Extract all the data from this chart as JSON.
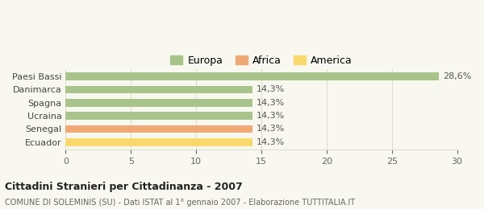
{
  "categories": [
    "Ecuador",
    "Senegal",
    "Ucraina",
    "Spagna",
    "Danimarca",
    "Paesi Bassi"
  ],
  "values": [
    14.3,
    14.3,
    14.3,
    14.3,
    14.3,
    28.6
  ],
  "bar_colors": [
    "#f9d96e",
    "#f0a875",
    "#a8c48a",
    "#a8c48a",
    "#a8c48a",
    "#a8c48a"
  ],
  "labels": [
    "14,3%",
    "14,3%",
    "14,3%",
    "14,3%",
    "14,3%",
    "28,6%"
  ],
  "legend": [
    {
      "label": "Europa",
      "color": "#a8c48a"
    },
    {
      "label": "Africa",
      "color": "#f0a875"
    },
    {
      "label": "America",
      "color": "#f9d96e"
    }
  ],
  "title": "Cittadini Stranieri per Cittadinanza - 2007",
  "subtitle": "COMUNE DI SOLEMINIS (SU) - Dati ISTAT al 1° gennaio 2007 - Elaborazione TUTTITALIA.IT",
  "xlim": [
    0,
    30
  ],
  "xticks": [
    0,
    5,
    10,
    15,
    20,
    25,
    30
  ],
  "background_color": "#f8f8f0",
  "grid_color": "#ddddcc"
}
